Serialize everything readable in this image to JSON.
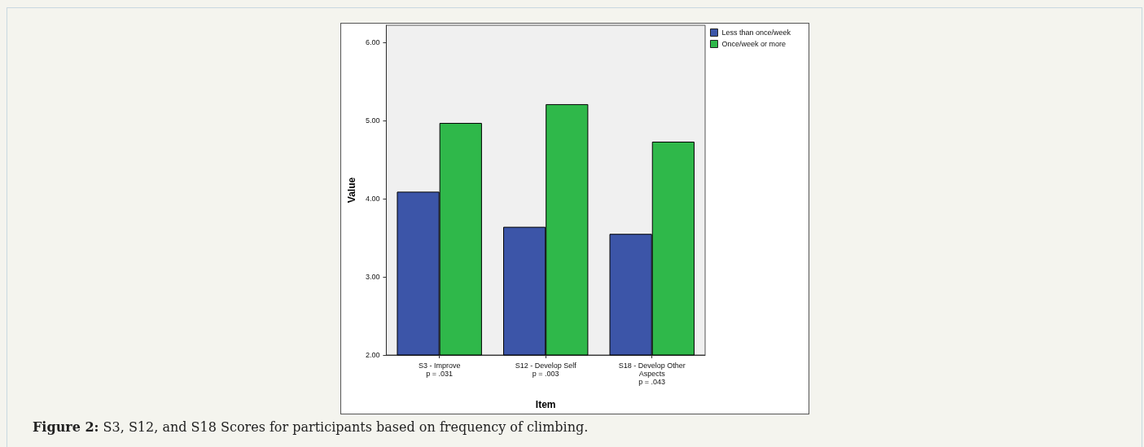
{
  "chart_data": {
    "type": "bar",
    "xlabel": "Item",
    "ylabel": "Value",
    "categories": [
      "S3 - Improve\np = .031",
      "S12 - Develop Self\np = .003",
      "S18 - Develop Other\nAspects\np = .043"
    ],
    "series": [
      {
        "name": "Less than once/week",
        "color": "#3c55a8",
        "values": [
          4.09,
          3.64,
          3.55
        ]
      },
      {
        "name": "Once/week or more",
        "color": "#2fb84a",
        "values": [
          4.97,
          5.21,
          4.73
        ]
      }
    ],
    "ylim": [
      2,
      6.22
    ],
    "yticks": [
      {
        "value": 2,
        "label": "2.00"
      },
      {
        "value": 3,
        "label": "3.00"
      },
      {
        "value": 4,
        "label": "4.00"
      },
      {
        "value": 5,
        "label": "5.00"
      },
      {
        "value": 6,
        "label": "6.00"
      }
    ],
    "grid": false,
    "legend": "top right",
    "annotations": [
      "Figure 2: S3, S12, and S18 Scores for participants based on frequency of climbing."
    ]
  }
}
